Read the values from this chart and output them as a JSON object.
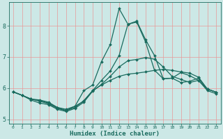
{
  "xlabel": "Humidex (Indice chaleur)",
  "bg_color": "#cce8e6",
  "line_color": "#1a6b5e",
  "grid_color": "#e89898",
  "xlim": [
    -0.5,
    23.5
  ],
  "ylim": [
    4.85,
    8.75
  ],
  "yticks": [
    5,
    6,
    7,
    8
  ],
  "series": [
    {
      "x": [
        0,
        1,
        2,
        3,
        4,
        5,
        6,
        7,
        8,
        9,
        10,
        11,
        12,
        13,
        14,
        15,
        16,
        17,
        18,
        19,
        20,
        21,
        22,
        23
      ],
      "y": [
        5.88,
        5.77,
        5.65,
        5.62,
        5.55,
        5.38,
        5.32,
        5.42,
        5.58,
        5.92,
        6.1,
        6.25,
        6.38,
        6.45,
        6.48,
        6.52,
        6.57,
        6.6,
        6.57,
        6.52,
        6.48,
        6.35,
        5.97,
        5.87
      ]
    },
    {
      "x": [
        0,
        1,
        2,
        3,
        4,
        5,
        6,
        7,
        8,
        9,
        10,
        11,
        12,
        13,
        14,
        15,
        16,
        17,
        18,
        19,
        20,
        21,
        22,
        23
      ],
      "y": [
        5.88,
        5.77,
        5.65,
        5.6,
        5.52,
        5.38,
        5.28,
        5.42,
        5.92,
        6.1,
        6.85,
        7.4,
        8.55,
        8.05,
        8.15,
        7.55,
        7.05,
        6.3,
        6.32,
        6.5,
        6.4,
        6.25,
        5.97,
        5.87
      ]
    },
    {
      "x": [
        0,
        1,
        2,
        3,
        4,
        5,
        6,
        7,
        8,
        9,
        10,
        11,
        12,
        13,
        14,
        15,
        16,
        17,
        18,
        19,
        20,
        21,
        22,
        23
      ],
      "y": [
        5.88,
        5.77,
        5.65,
        5.58,
        5.5,
        5.35,
        5.28,
        5.38,
        5.6,
        5.92,
        6.25,
        6.55,
        7.05,
        8.05,
        8.12,
        7.48,
        6.58,
        6.3,
        6.32,
        6.18,
        6.22,
        6.32,
        5.97,
        5.87
      ]
    },
    {
      "x": [
        0,
        1,
        2,
        3,
        4,
        5,
        6,
        7,
        8,
        9,
        10,
        11,
        12,
        13,
        14,
        15,
        16,
        17,
        18,
        19,
        20,
        21,
        22,
        23
      ],
      "y": [
        5.88,
        5.77,
        5.62,
        5.52,
        5.47,
        5.32,
        5.25,
        5.35,
        5.55,
        5.9,
        6.12,
        6.38,
        6.68,
        6.88,
        6.92,
        6.98,
        6.93,
        6.68,
        6.38,
        6.28,
        6.18,
        6.25,
        5.92,
        5.82
      ]
    }
  ]
}
